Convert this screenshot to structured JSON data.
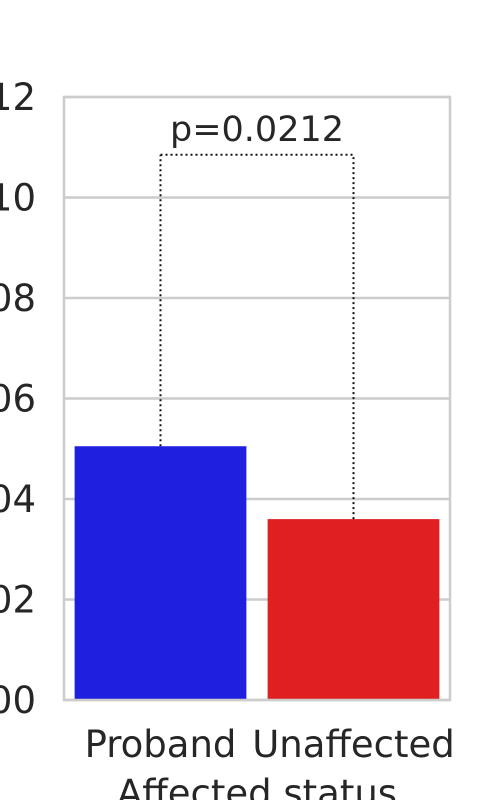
{
  "chart_data": {
    "type": "bar",
    "title": "",
    "xlabel": "Affected status",
    "ylabel": "",
    "categories": [
      "Proband",
      "Unaffected"
    ],
    "values": [
      0.0505,
      0.036
    ],
    "colors": [
      "#1f1fe0",
      "#e02020"
    ],
    "ylim": [
      0,
      0.12
    ],
    "yticks": [
      0.0,
      0.02,
      0.04,
      0.06,
      0.08,
      0.1,
      0.12
    ],
    "ytick_labels": [
      "00",
      "02",
      "04",
      "06",
      "08",
      "10",
      "12"
    ],
    "grid": true,
    "annotation": {
      "text": "p=0.0212",
      "bracket_y": 0.1085,
      "style": "dotted"
    }
  }
}
